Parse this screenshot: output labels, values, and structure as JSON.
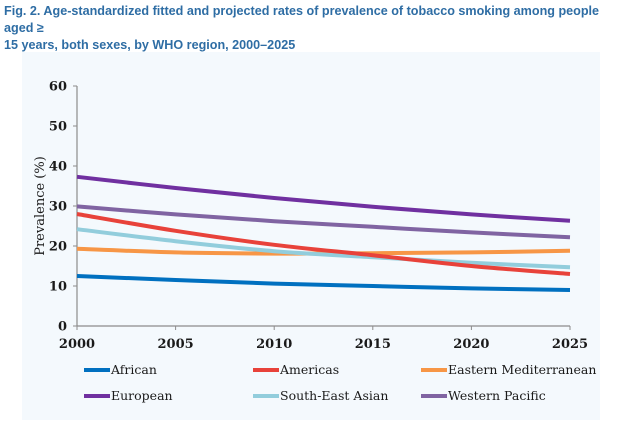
{
  "figure": {
    "title_line1": "Fig. 2. Age-standardized fitted and projected rates of prevalence of tobacco smoking among people aged ≥",
    "title_line2": "15 years, both sexes, by WHO region, 2000–2025"
  },
  "chart_data": {
    "type": "line",
    "title": "Age-standardized fitted and projected rates of prevalence of tobacco smoking among people aged ≥ 15 years, both sexes, by WHO region, 2000–2025",
    "xlabel": "",
    "ylabel": "Prevalence (%)",
    "x": [
      2000,
      2005,
      2010,
      2015,
      2020,
      2025
    ],
    "x_ticks": [
      "2000",
      "2005",
      "2010",
      "2015",
      "2020",
      "2025"
    ],
    "y_ticks": [
      "0",
      "10",
      "20",
      "30",
      "40",
      "50",
      "60"
    ],
    "xlim": [
      2000,
      2025
    ],
    "ylim": [
      0,
      60
    ],
    "grid": false,
    "legend_position": "bottom",
    "series": [
      {
        "name": "African",
        "color": "#0070c0",
        "values": [
          12.5,
          11.5,
          10.6,
          10.0,
          9.4,
          9.0
        ]
      },
      {
        "name": "Americas",
        "color": "#e8423a",
        "values": [
          28.0,
          23.8,
          20.3,
          17.7,
          15.0,
          13.0
        ]
      },
      {
        "name": "Eastern Mediterranean",
        "color": "#f79646",
        "values": [
          19.3,
          18.4,
          18.1,
          18.2,
          18.4,
          18.8
        ]
      },
      {
        "name": "European",
        "color": "#7030a0",
        "values": [
          37.3,
          34.5,
          32.0,
          29.8,
          27.9,
          26.3
        ]
      },
      {
        "name": "South-East Asian",
        "color": "#92cddc",
        "values": [
          24.2,
          21.2,
          18.7,
          17.2,
          15.8,
          14.7
        ]
      },
      {
        "name": "Western Pacific",
        "color": "#8064a2",
        "values": [
          29.9,
          27.9,
          26.2,
          24.8,
          23.4,
          22.2
        ]
      }
    ]
  }
}
